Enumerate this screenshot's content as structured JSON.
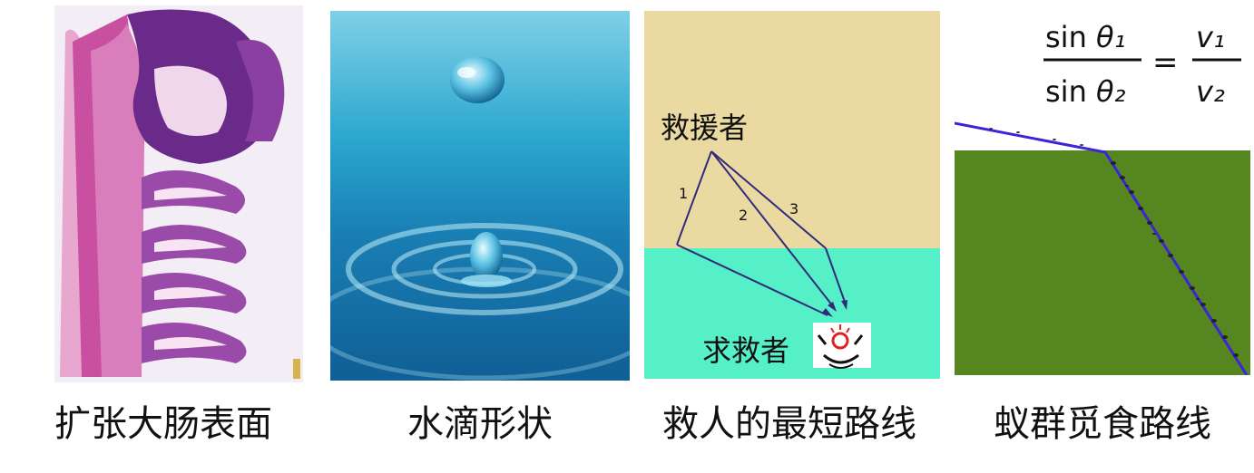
{
  "panels": {
    "intestine": {
      "caption": "扩张大肠表面"
    },
    "water": {
      "caption": "水滴形状"
    },
    "rescue": {
      "caption": "救人的最短路线",
      "rescuer_label": "救援者",
      "victim_label": "求救者",
      "path_labels": [
        "1",
        "2",
        "3"
      ],
      "colors": {
        "sand": "#ebd9a2",
        "water": "#55efc8",
        "path": "#2f2d7a"
      }
    },
    "ants": {
      "caption": "蚁群觅食路线",
      "formula": {
        "sin": "sin",
        "theta1": "θ₁",
        "theta2": "θ₂",
        "v1": "v₁",
        "v2": "v₂",
        "equals": "="
      },
      "colors": {
        "grass": "#5a8a22",
        "path": "#3a25d8"
      }
    }
  }
}
